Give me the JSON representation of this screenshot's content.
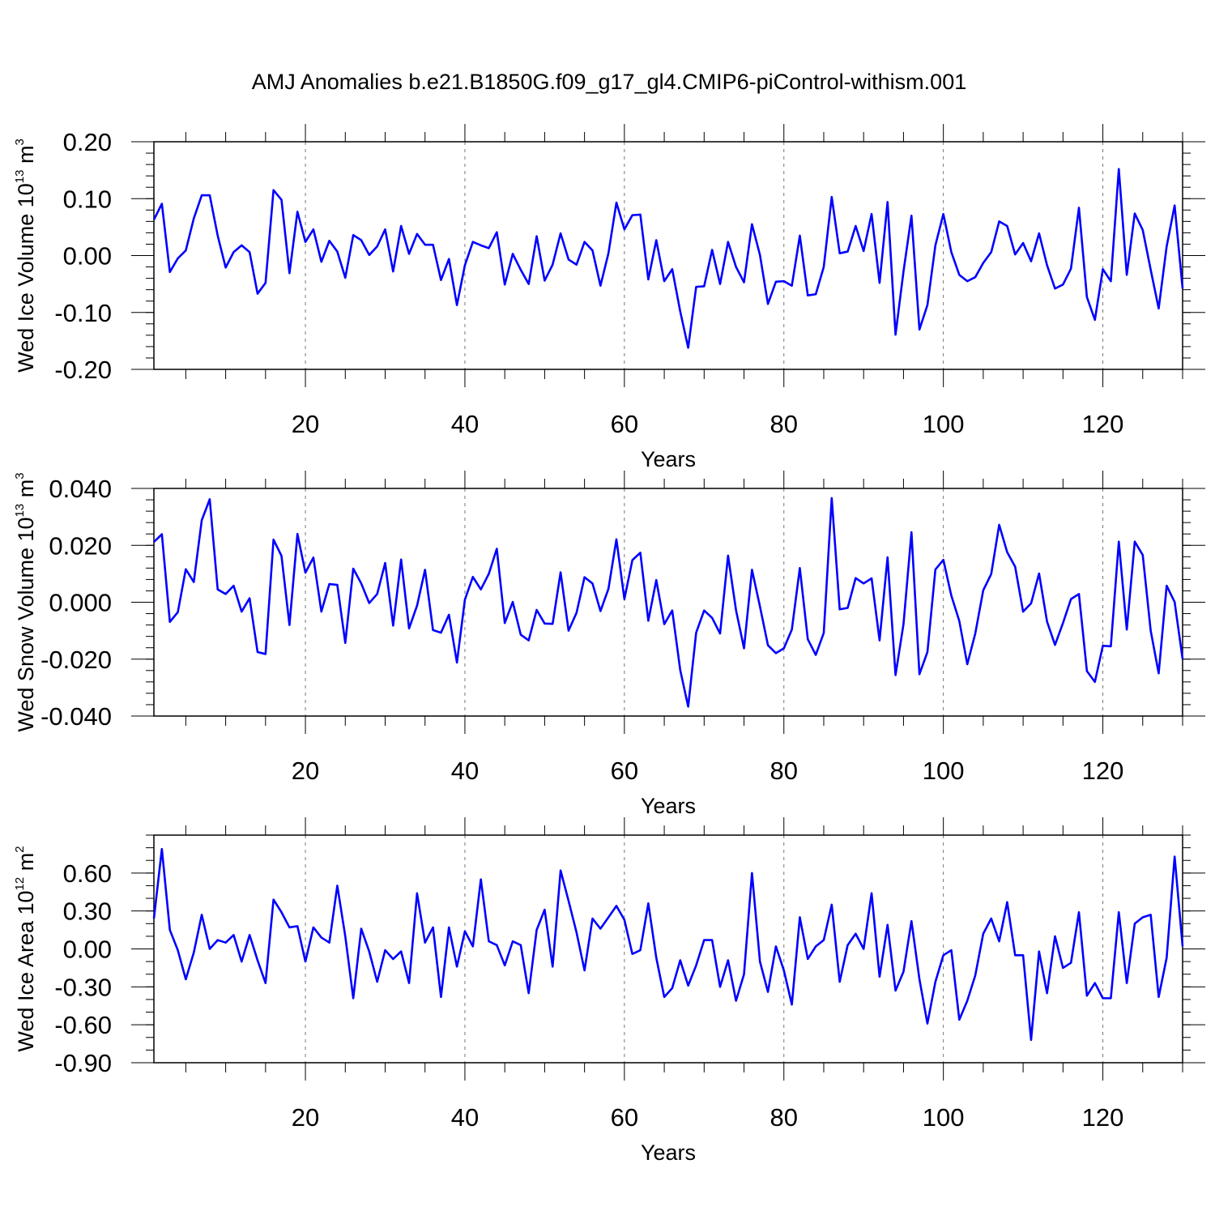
{
  "title": "AMJ Anomalies b.e21.B1850G.f09_g17_gl4.CMIP6-piControl-withism.001",
  "colors": {
    "line": "#0000ff",
    "axis": "#000000",
    "grid": "#777777"
  },
  "chart_data": [
    {
      "type": "line",
      "title": "",
      "xlabel": "Years",
      "ylabel": {
        "prefix": "Wed Ice Volume 10",
        "exp": "13",
        "suffix": " m",
        "exp2": "3"
      },
      "xlim": [
        1,
        130
      ],
      "ylim": [
        -0.2,
        0.2
      ],
      "xticks": [
        20,
        40,
        60,
        80,
        100,
        120
      ],
      "xtick_labels": [
        "20",
        "40",
        "60",
        "80",
        "100",
        "120"
      ],
      "yticks": [
        -0.2,
        -0.1,
        0.0,
        0.1,
        0.2
      ],
      "ytick_labels": [
        "-0.20",
        "-0.10",
        "0.00",
        "0.10",
        "0.20"
      ],
      "y_minor_step": 0.02,
      "grid": "vertical dashed at major x ticks",
      "x": [
        1,
        2,
        3,
        4,
        5,
        6,
        7,
        8,
        9,
        10,
        11,
        12,
        13,
        14,
        15,
        16,
        17,
        18,
        19,
        20,
        21,
        22,
        23,
        24,
        25,
        26,
        27,
        28,
        29,
        30,
        31,
        32,
        33,
        34,
        35,
        36,
        37,
        38,
        39,
        40,
        41,
        42,
        43,
        44,
        45,
        46,
        47,
        48,
        49,
        50,
        51,
        52,
        53,
        54,
        55,
        56,
        57,
        58,
        59,
        60,
        61,
        62,
        63,
        64,
        65,
        66,
        67,
        68,
        69,
        70,
        71,
        72,
        73,
        74,
        75,
        76,
        77,
        78,
        79,
        80,
        81,
        82,
        83,
        84,
        85,
        86,
        87,
        88,
        89,
        90,
        91,
        92,
        93,
        94,
        95,
        96,
        97,
        98,
        99,
        100,
        101,
        102,
        103,
        104,
        105,
        106,
        107,
        108,
        109,
        110,
        111,
        112,
        113,
        114,
        115,
        116,
        117,
        118,
        119,
        120,
        121,
        122,
        123,
        124,
        125,
        126,
        127,
        128,
        129,
        130
      ],
      "series": [
        {
          "values": [
            0.063,
            0.091,
            -0.029,
            -0.005,
            0.009,
            0.065,
            0.106,
            0.106,
            0.035,
            -0.021,
            0.006,
            0.018,
            0.006,
            -0.067,
            -0.048,
            0.115,
            0.098,
            -0.031,
            0.077,
            0.024,
            0.046,
            -0.011,
            0.026,
            0.007,
            -0.039,
            0.036,
            0.027,
            0.001,
            0.016,
            0.046,
            -0.028,
            0.052,
            0.003,
            0.038,
            0.019,
            0.019,
            -0.043,
            -0.006,
            -0.087,
            -0.017,
            0.024,
            0.018,
            0.013,
            0.041,
            -0.051,
            0.003,
            -0.025,
            -0.05,
            0.034,
            -0.044,
            -0.016,
            0.039,
            -0.007,
            -0.016,
            0.024,
            0.009,
            -0.053,
            0.004,
            0.093,
            0.046,
            0.071,
            0.072,
            -0.042,
            0.027,
            -0.045,
            -0.024,
            -0.098,
            -0.162,
            -0.055,
            -0.054,
            0.01,
            -0.05,
            0.024,
            -0.02,
            -0.047,
            0.055,
            0.001,
            -0.085,
            -0.046,
            -0.045,
            -0.053,
            0.035,
            -0.07,
            -0.068,
            -0.02,
            0.103,
            0.004,
            0.007,
            0.052,
            0.008,
            0.073,
            -0.048,
            0.094,
            -0.139,
            -0.028,
            0.07,
            -0.13,
            -0.087,
            0.018,
            0.073,
            0.006,
            -0.034,
            -0.045,
            -0.038,
            -0.013,
            0.006,
            0.06,
            0.052,
            0.002,
            0.022,
            -0.01,
            0.039,
            -0.017,
            -0.058,
            -0.051,
            -0.023,
            0.084,
            -0.073,
            -0.113,
            -0.024,
            -0.045,
            0.152,
            -0.034,
            0.074,
            0.045,
            -0.025,
            -0.093,
            0.016,
            0.088,
            -0.058
          ]
        }
      ]
    },
    {
      "type": "line",
      "title": "",
      "xlabel": "Years",
      "ylabel": {
        "prefix": "Wed Snow Volume 10",
        "exp": "13",
        "suffix": " m",
        "exp2": "3"
      },
      "xlim": [
        1,
        130
      ],
      "ylim": [
        -0.04,
        0.04
      ],
      "xticks": [
        20,
        40,
        60,
        80,
        100,
        120
      ],
      "xtick_labels": [
        "20",
        "40",
        "60",
        "80",
        "100",
        "120"
      ],
      "yticks": [
        -0.04,
        -0.02,
        0.0,
        0.02,
        0.04
      ],
      "ytick_labels": [
        "-0.040",
        "-0.020",
        "0.000",
        "0.020",
        "0.040"
      ],
      "y_minor_step": 0.004,
      "grid": "vertical dashed at major x ticks",
      "x": [
        1,
        2,
        3,
        4,
        5,
        6,
        7,
        8,
        9,
        10,
        11,
        12,
        13,
        14,
        15,
        16,
        17,
        18,
        19,
        20,
        21,
        22,
        23,
        24,
        25,
        26,
        27,
        28,
        29,
        30,
        31,
        32,
        33,
        34,
        35,
        36,
        37,
        38,
        39,
        40,
        41,
        42,
        43,
        44,
        45,
        46,
        47,
        48,
        49,
        50,
        51,
        52,
        53,
        54,
        55,
        56,
        57,
        58,
        59,
        60,
        61,
        62,
        63,
        64,
        65,
        66,
        67,
        68,
        69,
        70,
        71,
        72,
        73,
        74,
        75,
        76,
        77,
        78,
        79,
        80,
        81,
        82,
        83,
        84,
        85,
        86,
        87,
        88,
        89,
        90,
        91,
        92,
        93,
        94,
        95,
        96,
        97,
        98,
        99,
        100,
        101,
        102,
        103,
        104,
        105,
        106,
        107,
        108,
        109,
        110,
        111,
        112,
        113,
        114,
        115,
        116,
        117,
        118,
        119,
        120,
        121,
        122,
        123,
        124,
        125,
        126,
        127,
        128,
        129,
        130
      ],
      "series": [
        {
          "values": [
            0.0212,
            0.0239,
            -0.0069,
            -0.0035,
            0.0116,
            0.0071,
            0.0288,
            0.0362,
            0.0045,
            0.0029,
            0.0058,
            -0.0033,
            0.0014,
            -0.0175,
            -0.0182,
            0.022,
            0.0163,
            -0.008,
            0.024,
            0.0104,
            0.0157,
            -0.0033,
            0.0064,
            0.0061,
            -0.0143,
            0.0118,
            0.0066,
            -0.0003,
            0.0029,
            0.0138,
            -0.0082,
            0.015,
            -0.0092,
            -0.0012,
            0.0114,
            -0.0098,
            -0.0107,
            -0.0044,
            -0.0212,
            0.0009,
            0.0089,
            0.0045,
            0.01,
            0.0188,
            -0.0073,
            0.0001,
            -0.0114,
            -0.0134,
            -0.0027,
            -0.0075,
            -0.0076,
            0.0105,
            -0.01,
            -0.0037,
            0.0088,
            0.0066,
            -0.0031,
            0.0047,
            0.0221,
            0.0011,
            0.0148,
            0.0174,
            -0.0065,
            0.0078,
            -0.0077,
            -0.0029,
            -0.0238,
            -0.0367,
            -0.0107,
            -0.0029,
            -0.0055,
            -0.011,
            0.0164,
            -0.0028,
            -0.0162,
            0.0114,
            -0.0015,
            -0.0151,
            -0.0179,
            -0.0162,
            -0.0096,
            0.012,
            -0.013,
            -0.0185,
            -0.0108,
            0.0366,
            -0.0025,
            -0.002,
            0.0085,
            0.0066,
            0.0084,
            -0.0134,
            0.0158,
            -0.0256,
            -0.0077,
            0.0246,
            -0.0253,
            -0.0175,
            0.0115,
            0.0149,
            0.0023,
            -0.0066,
            -0.0218,
            -0.011,
            0.0042,
            0.0099,
            0.0272,
            0.0176,
            0.0125,
            -0.0033,
            -0.0004,
            0.0101,
            -0.0068,
            -0.015,
            -0.0073,
            0.0011,
            0.0029,
            -0.0242,
            -0.028,
            -0.0153,
            -0.0155,
            0.0213,
            -0.0096,
            0.0213,
            0.0166,
            -0.01,
            -0.025,
            0.0058,
            0.0001,
            -0.02
          ]
        }
      ]
    },
    {
      "type": "line",
      "title": "",
      "xlabel": "Years",
      "ylabel": {
        "prefix": "Wed Ice Area 10",
        "exp": "12",
        "suffix": " m",
        "exp2": "2"
      },
      "xlim": [
        1,
        130
      ],
      "ylim": [
        -0.9,
        0.9
      ],
      "xticks": [
        20,
        40,
        60,
        80,
        100,
        120
      ],
      "xtick_labels": [
        "20",
        "40",
        "60",
        "80",
        "100",
        "120"
      ],
      "yticks": [
        -0.9,
        -0.6,
        -0.3,
        0.0,
        0.3,
        0.6
      ],
      "ytick_labels": [
        "-0.90",
        "-0.60",
        "-0.30",
        "0.00",
        "0.30",
        "0.60"
      ],
      "y_minor_step": 0.1,
      "grid": "vertical dashed at major x ticks",
      "x": [
        1,
        2,
        3,
        4,
        5,
        6,
        7,
        8,
        9,
        10,
        11,
        12,
        13,
        14,
        15,
        16,
        17,
        18,
        19,
        20,
        21,
        22,
        23,
        24,
        25,
        26,
        27,
        28,
        29,
        30,
        31,
        32,
        33,
        34,
        35,
        36,
        37,
        38,
        39,
        40,
        41,
        42,
        43,
        44,
        45,
        46,
        47,
        48,
        49,
        50,
        51,
        52,
        53,
        54,
        55,
        56,
        57,
        58,
        59,
        60,
        61,
        62,
        63,
        64,
        65,
        66,
        67,
        68,
        69,
        70,
        71,
        72,
        73,
        74,
        75,
        76,
        77,
        78,
        79,
        80,
        81,
        82,
        83,
        84,
        85,
        86,
        87,
        88,
        89,
        90,
        91,
        92,
        93,
        94,
        95,
        96,
        97,
        98,
        99,
        100,
        101,
        102,
        103,
        104,
        105,
        106,
        107,
        108,
        109,
        110,
        111,
        112,
        113,
        114,
        115,
        116,
        117,
        118,
        119,
        120,
        121,
        122,
        123,
        124,
        125,
        126,
        127,
        128,
        129,
        130
      ],
      "series": [
        {
          "values": [
            0.24,
            0.79,
            0.15,
            -0.01,
            -0.24,
            -0.03,
            0.27,
            0.0,
            0.07,
            0.05,
            0.11,
            -0.1,
            0.11,
            -0.09,
            -0.27,
            0.39,
            0.29,
            0.17,
            0.18,
            -0.1,
            0.17,
            0.09,
            0.05,
            0.5,
            0.1,
            -0.39,
            0.16,
            -0.02,
            -0.26,
            -0.01,
            -0.08,
            -0.02,
            -0.27,
            0.44,
            0.05,
            0.17,
            -0.38,
            0.17,
            -0.14,
            0.14,
            0.02,
            0.55,
            0.06,
            0.03,
            -0.13,
            0.06,
            0.03,
            -0.35,
            0.15,
            0.31,
            -0.14,
            0.62,
            0.38,
            0.13,
            -0.17,
            0.24,
            0.16,
            0.25,
            0.34,
            0.23,
            -0.04,
            -0.01,
            0.36,
            -0.07,
            -0.38,
            -0.31,
            -0.09,
            -0.29,
            -0.13,
            0.07,
            0.07,
            -0.3,
            -0.09,
            -0.41,
            -0.2,
            0.6,
            -0.1,
            -0.34,
            0.02,
            -0.17,
            -0.44,
            0.25,
            -0.08,
            0.02,
            0.07,
            0.35,
            -0.26,
            0.03,
            0.12,
            0.0,
            0.44,
            -0.22,
            0.19,
            -0.33,
            -0.18,
            0.22,
            -0.24,
            -0.59,
            -0.26,
            -0.05,
            -0.01,
            -0.56,
            -0.41,
            -0.21,
            0.12,
            0.24,
            0.06,
            0.37,
            -0.05,
            -0.05,
            -0.72,
            -0.02,
            -0.35,
            0.1,
            -0.15,
            -0.11,
            0.29,
            -0.37,
            -0.27,
            -0.39,
            -0.39,
            0.29,
            -0.27,
            0.2,
            0.25,
            0.27,
            -0.38,
            -0.07,
            0.73,
            0.02
          ]
        }
      ]
    }
  ]
}
